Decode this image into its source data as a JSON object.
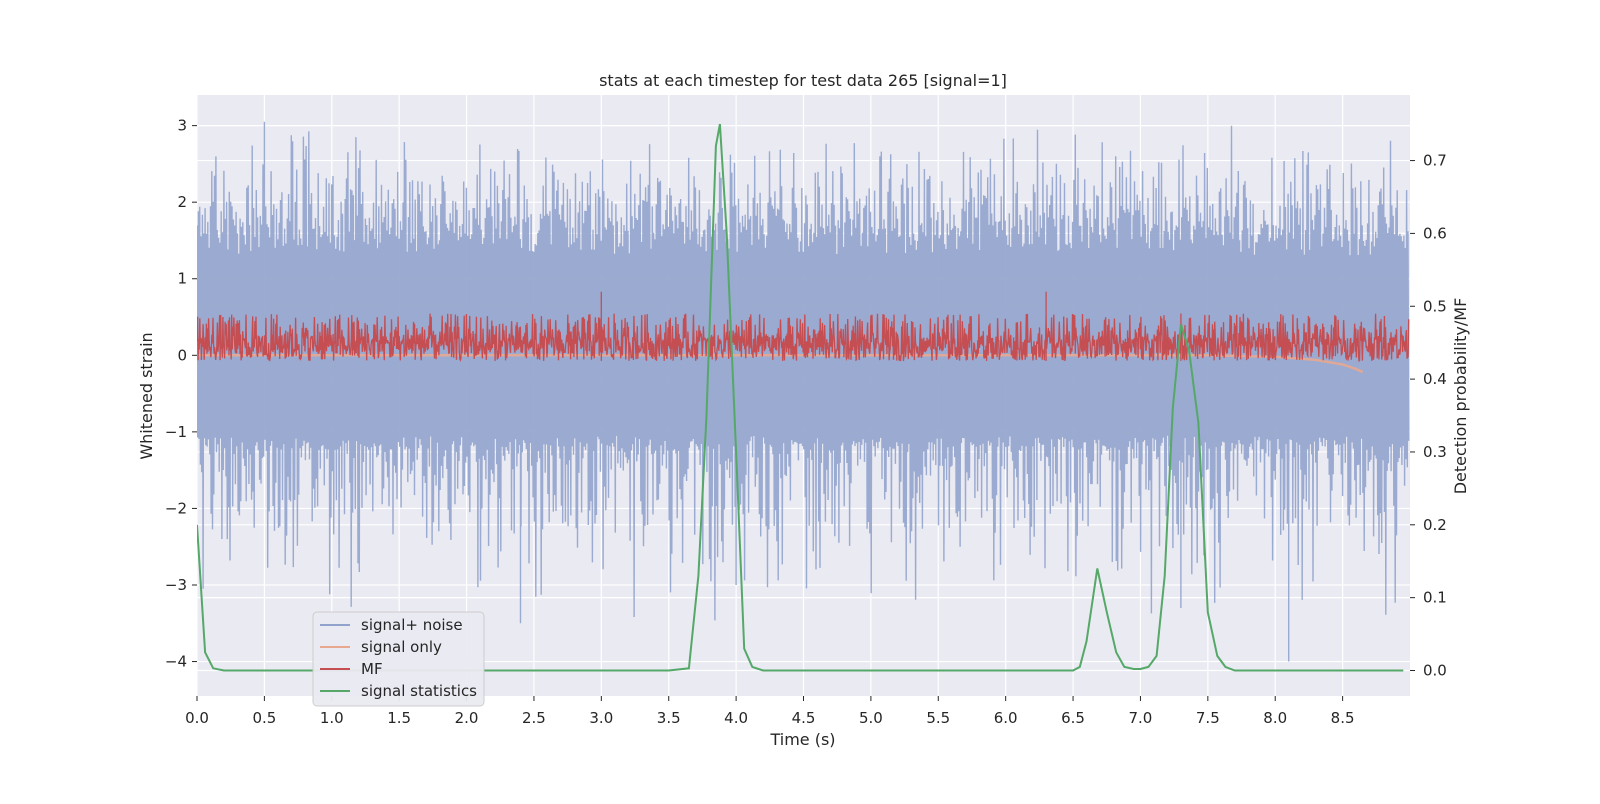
{
  "chart_data": {
    "type": "line",
    "title": "stats at each timestep for test data 265 [signal=1]",
    "xlabel": "Time (s)",
    "ylabel": "Whitened strain",
    "y2label": "Detection probability/MF",
    "xlim": [
      0.0,
      9.0
    ],
    "ylim": [
      -4.45,
      3.4
    ],
    "y2lim": [
      -0.035,
      0.79
    ],
    "xticks": [
      "0.0",
      "0.5",
      "1.0",
      "1.5",
      "2.0",
      "2.5",
      "3.0",
      "3.5",
      "4.0",
      "4.5",
      "5.0",
      "5.5",
      "6.0",
      "6.5",
      "7.0",
      "7.5",
      "8.0",
      "8.5"
    ],
    "yticks": [
      "3",
      "2",
      "1",
      "0",
      "−1",
      "−2",
      "−3",
      "−4"
    ],
    "y2ticks": [
      "0.7",
      "0.6",
      "0.5",
      "0.4",
      "0.3",
      "0.2",
      "0.1",
      "0.0"
    ],
    "grid": true,
    "legend_position": "lower-left",
    "series": [
      {
        "name": "signal+ noise",
        "axis": "left",
        "color": "#91a3cc",
        "description_kind": "dense-noise",
        "envelope": {
          "upper": [
            1.7,
            3.05
          ],
          "lower": [
            -1.2,
            -3.5
          ]
        },
        "outliers": [
          [
            0.5,
            3.05
          ],
          [
            2.4,
            -3.5
          ],
          [
            7.3,
            -3.3
          ],
          [
            8.1,
            -4.0
          ],
          [
            4.0,
            -3.0
          ]
        ]
      },
      {
        "name": "signal only",
        "axis": "left",
        "color": "#e8a78f",
        "x": [
          0.0,
          6.0,
          7.0,
          7.5,
          8.0,
          8.3,
          8.5,
          8.6,
          8.65
        ],
        "y": [
          0.0,
          0.0,
          0.0,
          0.0,
          -0.02,
          -0.06,
          -0.12,
          -0.18,
          -0.22
        ]
      },
      {
        "name": "MF",
        "axis": "right",
        "color": "#c44e52",
        "description_kind": "dense-noise",
        "band": [
          0.425,
          0.49
        ],
        "spikes": [
          [
            3.0,
            0.52
          ],
          [
            6.3,
            0.52
          ],
          [
            7.3,
            0.49
          ]
        ]
      },
      {
        "name": "signal statistics",
        "axis": "right",
        "color": "#55a868",
        "x": [
          0.0,
          0.06,
          0.12,
          0.2,
          0.3,
          0.5,
          1.0,
          2.0,
          3.0,
          3.5,
          3.65,
          3.72,
          3.78,
          3.85,
          3.88,
          3.93,
          4.0,
          4.06,
          4.12,
          4.2,
          4.5,
          5.0,
          6.0,
          6.5,
          6.55,
          6.6,
          6.68,
          6.75,
          6.82,
          6.88,
          6.95,
          7.0,
          7.06,
          7.12,
          7.18,
          7.24,
          7.3,
          7.36,
          7.43,
          7.5,
          7.57,
          7.63,
          7.7,
          8.0,
          8.5,
          8.95
        ],
        "y": [
          0.2,
          0.025,
          0.003,
          0.0,
          0.0,
          0.0,
          0.0,
          0.0,
          0.0,
          0.0,
          0.003,
          0.13,
          0.35,
          0.72,
          0.75,
          0.6,
          0.3,
          0.03,
          0.005,
          0.0,
          0.0,
          0.0,
          0.0,
          0.0,
          0.005,
          0.04,
          0.14,
          0.08,
          0.025,
          0.005,
          0.002,
          0.002,
          0.005,
          0.02,
          0.13,
          0.36,
          0.475,
          0.44,
          0.34,
          0.08,
          0.02,
          0.005,
          0.0,
          0.0,
          0.0,
          0.0
        ]
      }
    ]
  }
}
